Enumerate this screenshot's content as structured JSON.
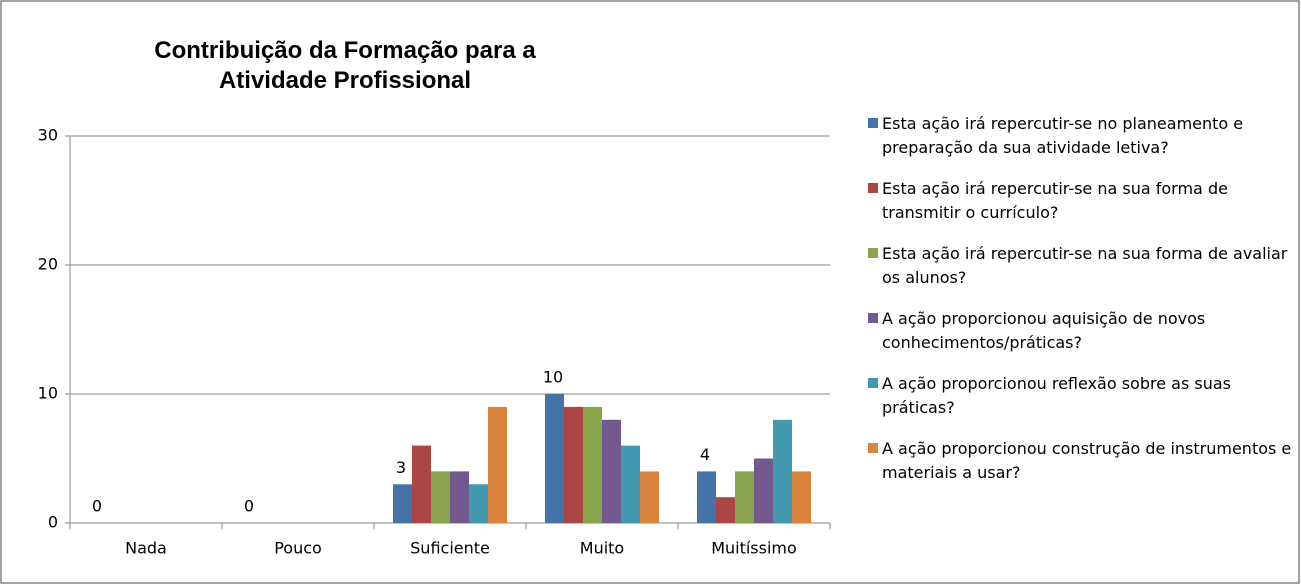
{
  "chart_data": {
    "type": "bar",
    "title": "Contribuição da Formação para a Atividade Profissional",
    "categories": [
      "Nada",
      "Pouco",
      "Suficiente",
      "Muito",
      "Muitíssimo"
    ],
    "series": [
      {
        "name": "Esta ação irá repercutir-se no planeamento e preparação da sua atividade letiva?",
        "color": "#4572a7",
        "values": [
          0,
          0,
          3,
          10,
          4
        ],
        "data_labels": true
      },
      {
        "name": "Esta ação irá repercutir-se na sua forma de transmitir o currículo?",
        "color": "#aa4643",
        "values": [
          0,
          0,
          6,
          9,
          2
        ]
      },
      {
        "name": "Esta ação irá repercutir-se na sua forma de avaliar os alunos?",
        "color": "#89a54e",
        "values": [
          0,
          0,
          4,
          9,
          4
        ]
      },
      {
        "name": "A ação proporcionou aquisição de novos conhecimentos/práticas?",
        "color": "#71588f",
        "values": [
          0,
          0,
          4,
          8,
          5
        ]
      },
      {
        "name": "A ação proporcionou reflexão sobre as suas práticas?",
        "color": "#4198af",
        "values": [
          0,
          0,
          3,
          6,
          8
        ]
      },
      {
        "name": "A ação proporcionou construção de instrumentos e materiais a usar?",
        "color": "#db843d",
        "values": [
          0,
          0,
          9,
          4,
          4
        ]
      }
    ],
    "ylim": [
      0,
      30
    ],
    "yticks": [
      0,
      10,
      20,
      30
    ],
    "grid": true,
    "legend": "right"
  }
}
